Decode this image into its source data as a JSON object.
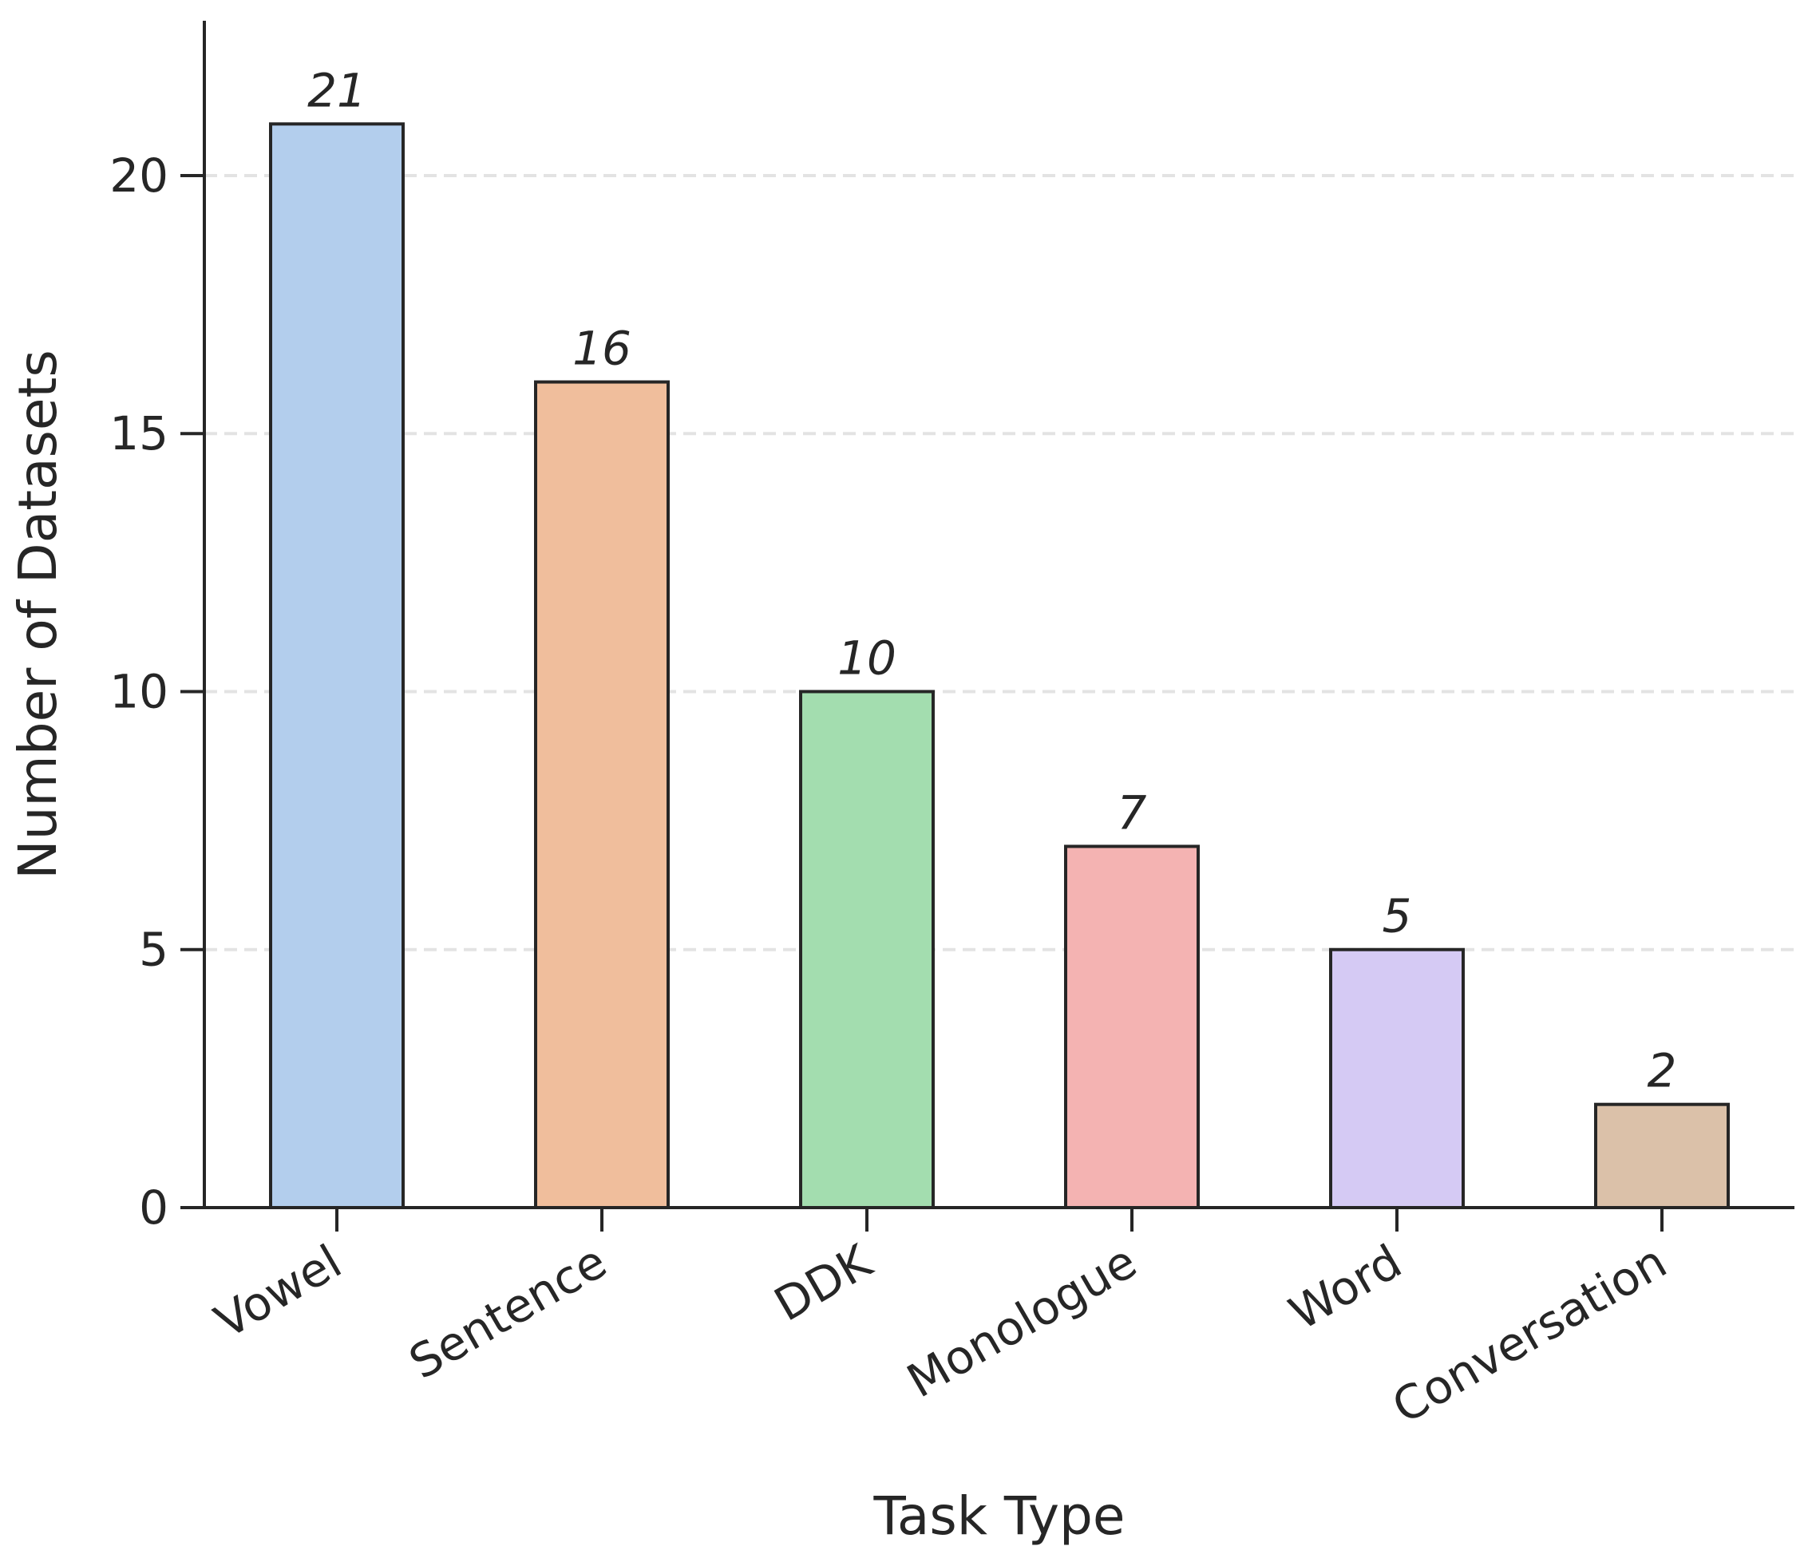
{
  "chart_data": {
    "type": "bar",
    "categories": [
      "Vowel",
      "Sentence",
      "DDK",
      "Monologue",
      "Word",
      "Conversation"
    ],
    "values": [
      21,
      16,
      10,
      7,
      5,
      2
    ],
    "data_labels": [
      "21",
      "16",
      "10",
      "7",
      "5",
      "2"
    ],
    "colors": [
      "#b3ceed",
      "#f0be9c",
      "#a3ddaf",
      "#f4b3b2",
      "#d5caf4",
      "#dbc1a9"
    ],
    "xlabel": "Task Type",
    "ylabel": "Number of Datasets",
    "ylim": [
      0,
      23
    ],
    "yticks": [
      0,
      5,
      10,
      15,
      20
    ],
    "ytick_labels": [
      "0",
      "5",
      "10",
      "15",
      "20"
    ],
    "grid": "horizontal dashed",
    "legend": "none"
  }
}
